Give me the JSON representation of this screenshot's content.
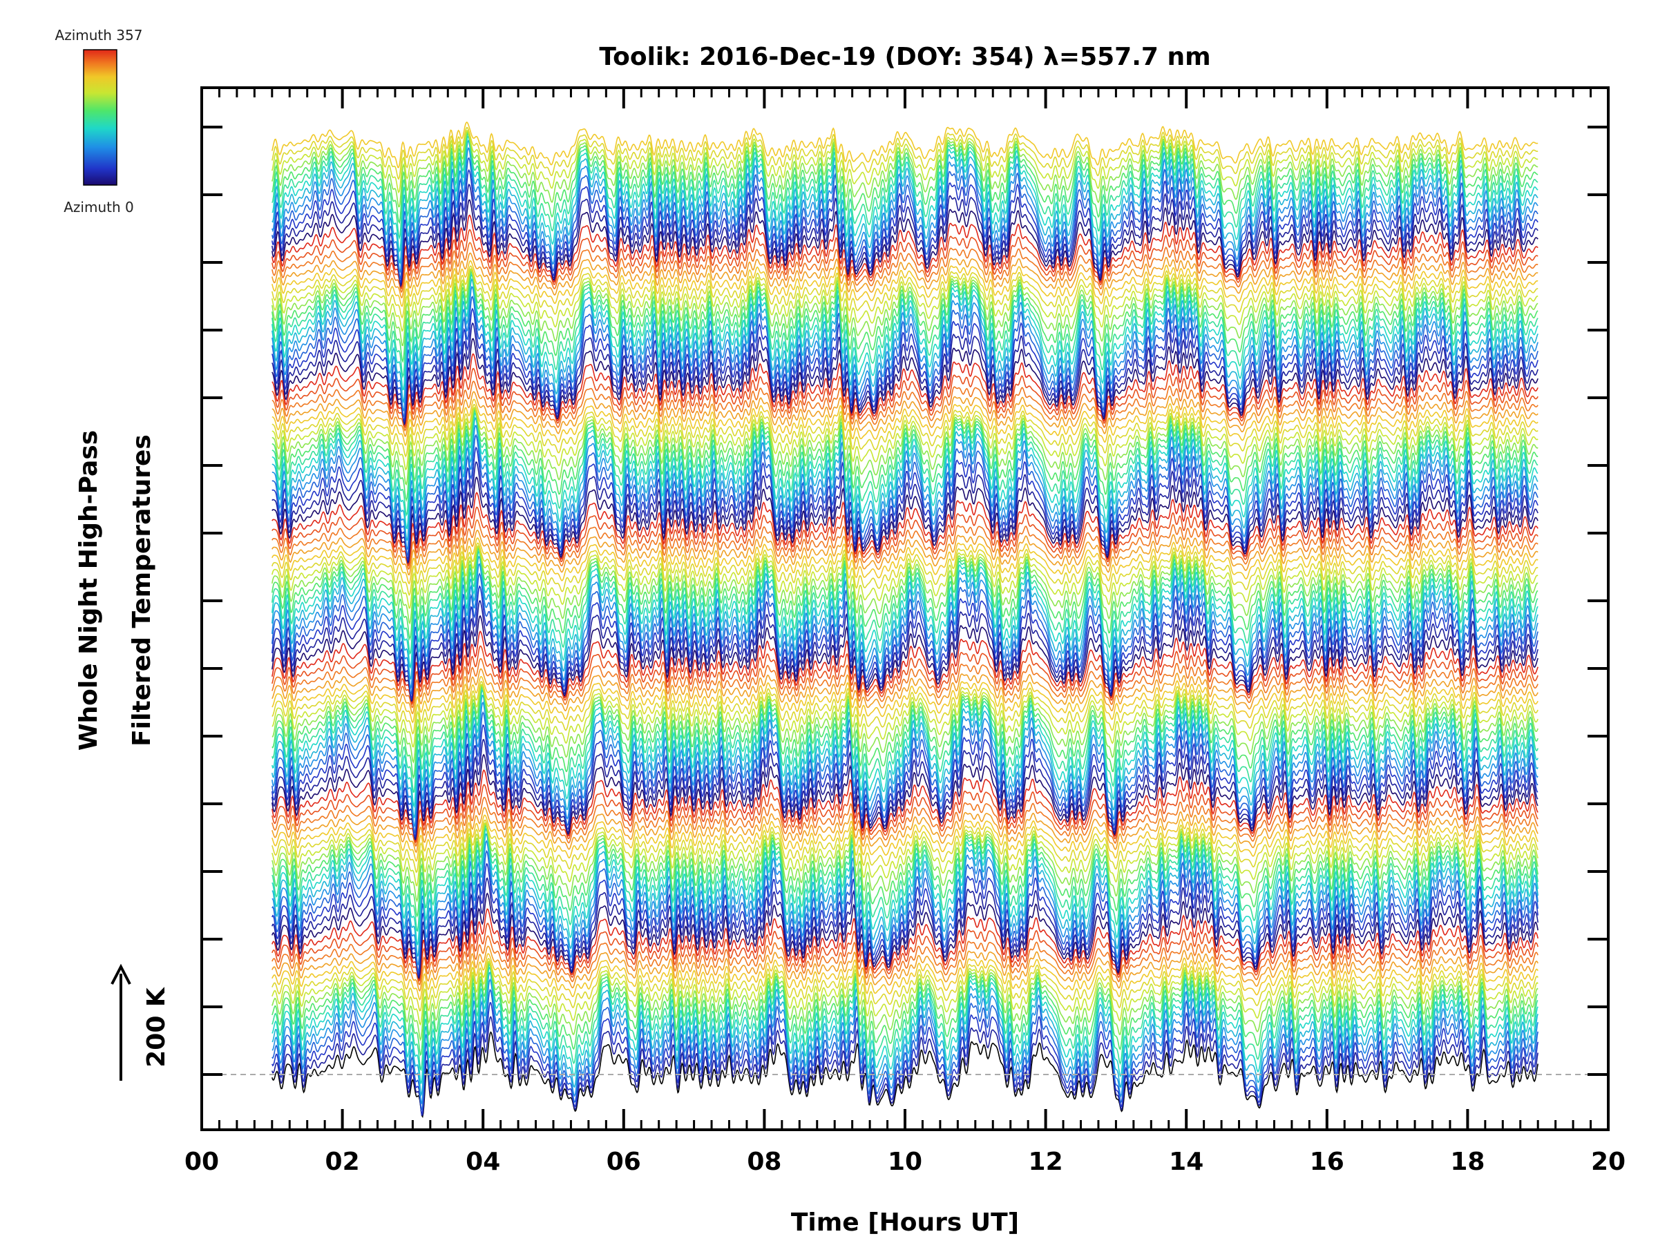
{
  "chart_data": {
    "type": "line",
    "title": "Toolik: 2016-Dec-19 (DOY: 354) λ=557.7 nm",
    "xlabel": "Time [Hours UT]",
    "ylabel_line1": "Whole Night High-Pass",
    "ylabel_line2": "Filtered Temperatures",
    "xlim": [
      0,
      20
    ],
    "x_tick_labels": [
      "00",
      "02",
      "04",
      "06",
      "08",
      "10",
      "12",
      "14",
      "16",
      "18",
      "20"
    ],
    "scale_bar_label": "200 K",
    "colorbar": {
      "top_label": "Azimuth 357",
      "bottom_label": "Azimuth 0",
      "colormap": [
        "#1a0a6e",
        "#2034c8",
        "#1f8fe6",
        "#1fd8c8",
        "#4fe66a",
        "#c8e632",
        "#f0c828",
        "#f07820",
        "#e02818"
      ]
    },
    "baseline_color": "#aaaaaa",
    "trace_x_range": [
      1.0,
      19.0
    ],
    "series_count": 115,
    "series_note": "115 stacked high-pass filtered temperature traces (sorted by azimuth, black->blue->cyan->green->yellow->orange cycles), each offset vertically; values are temperature deviations in K.",
    "feature_times": [
      2.25,
      3.1,
      4.1,
      5.3,
      5.8,
      7.9,
      8.15,
      8.5,
      9.3,
      9.65,
      10.3,
      10.65,
      11.1,
      11.6,
      11.95,
      12.5,
      12.85,
      13.1,
      14.1,
      15.0,
      17.75
    ]
  }
}
